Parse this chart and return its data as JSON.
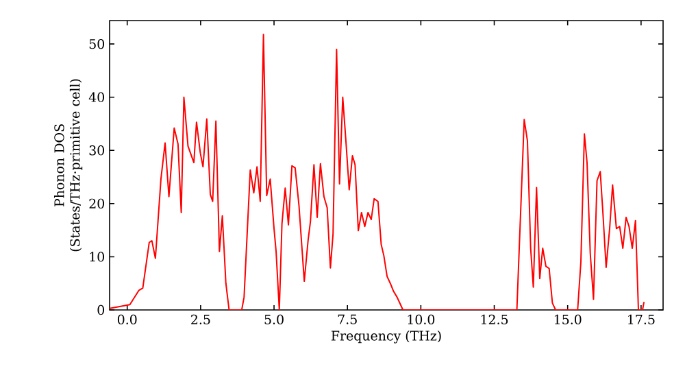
{
  "chart_data": {
    "type": "line",
    "xlabel": "Frequency (THz)",
    "ylabel": "Phonon DOS (States/THz·primitive cell)",
    "xlim": [
      -0.6,
      18.25
    ],
    "ylim": [
      0,
      54.4
    ],
    "xticks": [
      {
        "value": 0,
        "label": "0.0"
      },
      {
        "value": 2.5,
        "label": "2.5"
      },
      {
        "value": 5,
        "label": "5.0"
      },
      {
        "value": 7.5,
        "label": "7.5"
      },
      {
        "value": 10,
        "label": "10.0"
      },
      {
        "value": 12.5,
        "label": "12.5"
      },
      {
        "value": 15,
        "label": "15.0"
      },
      {
        "value": 17.5,
        "label": "17.5"
      }
    ],
    "yticks": [
      0,
      10,
      20,
      30,
      40,
      50
    ],
    "series": [
      {
        "color": "#ff0000",
        "x": [
          -0.6,
          0.09,
          0.4,
          0.53,
          0.75,
          0.84,
          0.96,
          1.15,
          1.29,
          1.42,
          1.6,
          1.73,
          1.84,
          1.93,
          2.07,
          2.27,
          2.36,
          2.49,
          2.58,
          2.71,
          2.83,
          2.91,
          3.02,
          3.14,
          3.24,
          3.36,
          3.47,
          3.9,
          3.98,
          4.19,
          4.31,
          4.42,
          4.53,
          4.64,
          4.75,
          4.87,
          5.0,
          5.07,
          5.18,
          5.27,
          5.38,
          5.49,
          5.61,
          5.72,
          5.85,
          6.03,
          6.16,
          6.24,
          6.36,
          6.47,
          6.58,
          6.7,
          6.81,
          6.92,
          7.01,
          7.13,
          7.23,
          7.34,
          7.45,
          7.56,
          7.67,
          7.76,
          7.87,
          7.98,
          8.09,
          8.2,
          8.31,
          8.41,
          8.54,
          8.65,
          8.74,
          8.85,
          8.96,
          9.07,
          9.19,
          9.3,
          9.39,
          13.27,
          13.52,
          13.63,
          13.74,
          13.83,
          13.94,
          14.05,
          14.15,
          14.26,
          14.37,
          14.48,
          14.59,
          15.34,
          15.45,
          15.57,
          15.66,
          15.77,
          15.88,
          16.0,
          16.11,
          16.2,
          16.31,
          16.43,
          16.53,
          16.66,
          16.77,
          16.88,
          16.99,
          17.09,
          17.2,
          17.31,
          17.41,
          17.55,
          17.6
        ],
        "values": [
          0.3,
          1,
          3.7,
          4.1,
          12.7,
          13,
          9.7,
          24.7,
          31.4,
          21.3,
          34.2,
          31.2,
          18.3,
          40,
          30.8,
          27.7,
          35.3,
          29.5,
          26.9,
          35.9,
          21.7,
          20.4,
          35.5,
          11,
          17.7,
          5,
          0,
          0,
          2.4,
          26.3,
          22,
          26.9,
          20.4,
          51.8,
          21.5,
          24.6,
          15.3,
          11,
          0,
          16.2,
          22.9,
          16,
          27.1,
          26.7,
          19.6,
          5.4,
          13.1,
          16.6,
          27.3,
          17.4,
          27.5,
          21.3,
          19.2,
          7.9,
          14.3,
          49,
          23.7,
          40,
          31.6,
          22.6,
          29,
          27.3,
          14.9,
          18.3,
          15.7,
          18.3,
          17,
          20.9,
          20.4,
          12.3,
          10.2,
          6.3,
          5,
          3.5,
          2.4,
          1.1,
          0,
          0,
          35.8,
          31.8,
          11.6,
          4.3,
          23,
          5.9,
          11.6,
          8.2,
          7.8,
          1.3,
          0,
          0,
          9,
          33.1,
          27.7,
          10.6,
          2,
          24.3,
          26,
          18.3,
          8,
          15.3,
          23.5,
          15.3,
          15.7,
          11.6,
          17.4,
          15.7,
          11.6,
          16.8,
          0,
          0,
          1.5
        ]
      }
    ]
  }
}
